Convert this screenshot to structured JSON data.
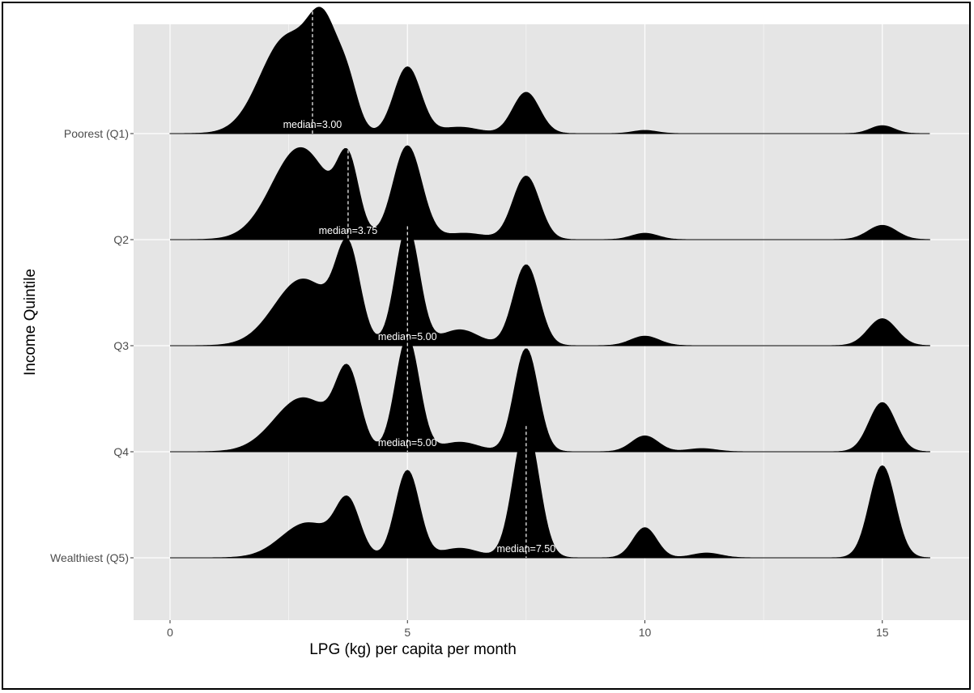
{
  "chart_data": {
    "type": "ridgeline",
    "xlabel": "LPG (kg) per capita per month",
    "ylabel": "Income Quintile",
    "xlim": [
      -1.6,
      16.6
    ],
    "x_ticks": [
      0,
      5,
      10,
      15
    ],
    "x_tick_labels": [
      "0",
      "5",
      "10",
      "15"
    ],
    "x_range": [
      0,
      16
    ],
    "grid": true,
    "colors": {
      "panel": "#e5e5e5",
      "grid": "#ffffff",
      "fill": "#000000",
      "median_line": "#ffffff",
      "median_text": "#ffffff"
    },
    "series": [
      {
        "name": "Poorest (Q1)",
        "median": 3.0,
        "median_label": "median=3.00",
        "peaks": [
          {
            "mu": 2.45,
            "sigma": 0.55,
            "a": 0.6
          },
          {
            "mu": 3.25,
            "sigma": 0.32,
            "a": 0.55
          },
          {
            "mu": 3.75,
            "sigma": 0.22,
            "a": 0.23
          },
          {
            "mu": 5.0,
            "sigma": 0.28,
            "a": 0.42
          },
          {
            "mu": 6.1,
            "sigma": 0.4,
            "a": 0.04
          },
          {
            "mu": 7.5,
            "sigma": 0.28,
            "a": 0.26
          },
          {
            "mu": 10.0,
            "sigma": 0.25,
            "a": 0.02
          },
          {
            "mu": 15.0,
            "sigma": 0.25,
            "a": 0.05
          }
        ]
      },
      {
        "name": "Q2",
        "median": 3.75,
        "median_label": "median=3.75",
        "peaks": [
          {
            "mu": 2.75,
            "sigma": 0.6,
            "a": 0.58
          },
          {
            "mu": 3.75,
            "sigma": 0.22,
            "a": 0.42
          },
          {
            "mu": 5.0,
            "sigma": 0.3,
            "a": 0.59
          },
          {
            "mu": 6.2,
            "sigma": 0.45,
            "a": 0.04
          },
          {
            "mu": 7.5,
            "sigma": 0.28,
            "a": 0.4
          },
          {
            "mu": 10.0,
            "sigma": 0.28,
            "a": 0.04
          },
          {
            "mu": 15.0,
            "sigma": 0.3,
            "a": 0.09
          }
        ]
      },
      {
        "name": "Q3",
        "median": 5.0,
        "median_label": "median=5.00",
        "peaks": [
          {
            "mu": 2.8,
            "sigma": 0.6,
            "a": 0.42
          },
          {
            "mu": 3.75,
            "sigma": 0.25,
            "a": 0.55
          },
          {
            "mu": 5.0,
            "sigma": 0.25,
            "a": 0.75
          },
          {
            "mu": 6.1,
            "sigma": 0.4,
            "a": 0.1
          },
          {
            "mu": 7.5,
            "sigma": 0.27,
            "a": 0.51
          },
          {
            "mu": 10.0,
            "sigma": 0.3,
            "a": 0.06
          },
          {
            "mu": 15.0,
            "sigma": 0.3,
            "a": 0.17
          }
        ]
      },
      {
        "name": "Q4",
        "median": 5.0,
        "median_label": "median=5.00",
        "peaks": [
          {
            "mu": 2.8,
            "sigma": 0.6,
            "a": 0.34
          },
          {
            "mu": 3.75,
            "sigma": 0.25,
            "a": 0.45
          },
          {
            "mu": 5.0,
            "sigma": 0.25,
            "a": 0.72
          },
          {
            "mu": 6.1,
            "sigma": 0.4,
            "a": 0.06
          },
          {
            "mu": 7.5,
            "sigma": 0.25,
            "a": 0.65
          },
          {
            "mu": 10.0,
            "sigma": 0.28,
            "a": 0.1
          },
          {
            "mu": 11.2,
            "sigma": 0.3,
            "a": 0.02
          },
          {
            "mu": 15.0,
            "sigma": 0.28,
            "a": 0.31
          }
        ]
      },
      {
        "name": "Wealthiest (Q5)",
        "median": 7.5,
        "median_label": "median=7.50",
        "peaks": [
          {
            "mu": 2.9,
            "sigma": 0.55,
            "a": 0.22
          },
          {
            "mu": 3.75,
            "sigma": 0.25,
            "a": 0.32
          },
          {
            "mu": 5.0,
            "sigma": 0.25,
            "a": 0.55
          },
          {
            "mu": 6.1,
            "sigma": 0.4,
            "a": 0.06
          },
          {
            "mu": 7.5,
            "sigma": 0.27,
            "a": 0.83
          },
          {
            "mu": 10.0,
            "sigma": 0.25,
            "a": 0.19
          },
          {
            "mu": 11.3,
            "sigma": 0.3,
            "a": 0.03
          },
          {
            "mu": 15.0,
            "sigma": 0.27,
            "a": 0.58
          }
        ]
      }
    ]
  }
}
